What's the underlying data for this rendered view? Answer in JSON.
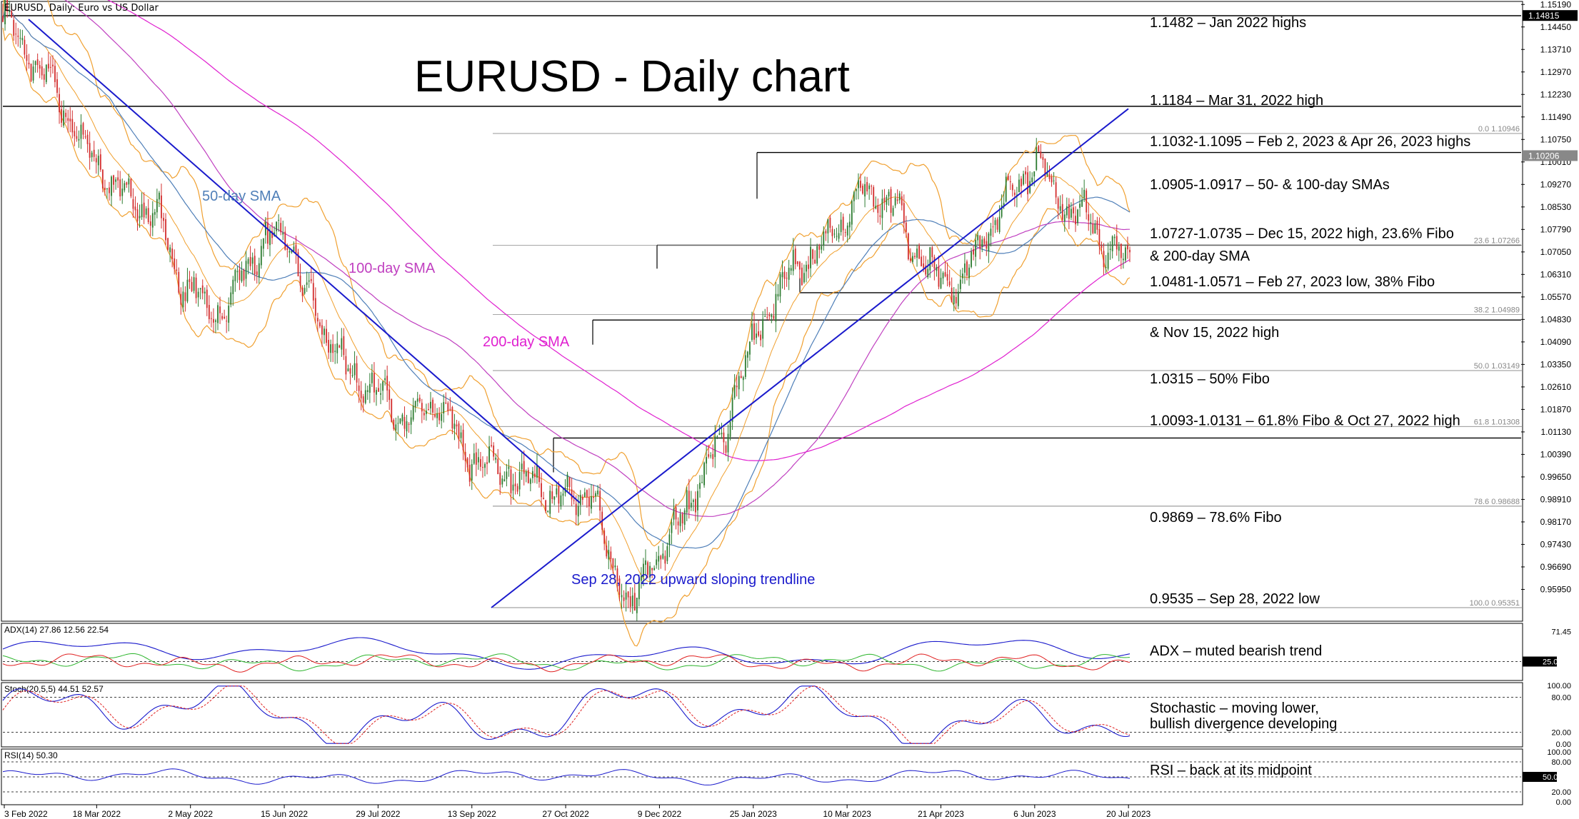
{
  "chart_data": {
    "type": "line",
    "title": "EURUSD - Daily chart",
    "header": "EURUSD, Daily:  Euro vs US Dollar",
    "instrument": "EURUSD",
    "timeframe": "Daily",
    "colors": {
      "price_up": "#2e7d32",
      "price_down": "#d32f2f",
      "sma50": "#4f7fb8",
      "sma100": "#c040c0",
      "sma200": "#e020d0",
      "bollinger": "#f0a030",
      "trendline": "#1a1acc",
      "level_line": "#000000",
      "fib_line": "#888888",
      "adx": "#1a1acc",
      "plus_di": "#2db52d",
      "minus_di": "#e02020",
      "stoch_main": "#1a1acc",
      "stoch_signal": "#e02020",
      "rsi": "#1a1acc"
    },
    "x_labels": [
      "3 Feb 2022",
      "18 Mar 2022",
      "2 May 2022",
      "15 Jun 2022",
      "29 Jul 2022",
      "13 Sep 2022",
      "27 Oct 2022",
      "9 Dec 2022",
      "25 Jan 2023",
      "10 Mar 2023",
      "21 Apr 2023",
      "6 Jun 2023",
      "20 Jul 2023"
    ],
    "y_ticks": [
      "1.15190",
      "1.14450",
      "1.13710",
      "1.12970",
      "1.12230",
      "1.11490",
      "1.10750",
      "1.10010",
      "1.09270",
      "1.08530",
      "1.07790",
      "1.07050",
      "1.06310",
      "1.05570",
      "1.04830",
      "1.04090",
      "1.03350",
      "1.02610",
      "1.01870",
      "1.01130",
      "1.00390",
      "0.99650",
      "0.98910",
      "0.98170",
      "0.97430",
      "0.96690",
      "0.95950"
    ],
    "ylim": [
      0.9535,
      1.1519
    ],
    "y_tick_values": [
      1.1519,
      1.1445,
      1.1371,
      1.1297,
      1.1223,
      1.1149,
      1.1075,
      1.1001,
      1.0927,
      1.0853,
      1.0779,
      1.0705,
      1.0631,
      1.0557,
      1.0483,
      1.0409,
      1.0335,
      1.0261,
      1.0187,
      1.0113,
      1.0039,
      0.9965,
      0.9891,
      0.9817,
      0.9743,
      0.9669,
      0.9595
    ],
    "price_badges": [
      {
        "text": "1.14815",
        "value": 1.14815
      },
      {
        "text": "1.10206",
        "value": 1.10206
      }
    ],
    "series": [
      {
        "name": "Close",
        "x": [
          0,
          10,
          20,
          30,
          40,
          55,
          70,
          85,
          100,
          115,
          130,
          140,
          150,
          160,
          170,
          185,
          200,
          215,
          230,
          245,
          260,
          270,
          280,
          290,
          300,
          310,
          315,
          320,
          330,
          340,
          348,
          355,
          365,
          375,
          385,
          395,
          410,
          420,
          430,
          440,
          455,
          465,
          475,
          485,
          492,
          500,
          510
        ],
        "y": [
          1.1482,
          1.1367,
          1.128,
          1.115,
          1.102,
          1.09,
          1.082,
          1.058,
          1.05,
          1.069,
          1.078,
          1.056,
          1.042,
          1.03,
          1.025,
          1.016,
          1.02,
          1.004,
          0.998,
          0.995,
          0.988,
          0.992,
          0.968,
          0.954,
          0.97,
          0.978,
          0.988,
          0.995,
          1.007,
          1.03,
          1.045,
          1.055,
          1.065,
          1.07,
          1.08,
          1.09,
          1.086,
          1.072,
          1.062,
          1.06,
          1.078,
          1.09,
          1.1,
          1.09,
          1.083,
          1.082,
          1.07
        ]
      }
    ],
    "sma_labels": [
      "50-day SMA",
      "100-day SMA",
      "200-day SMA"
    ],
    "trendline_label": "Sep 28, 2022 upward sloping trendline",
    "levels": [
      {
        "label": "1.1482 – Jan 2022 highs",
        "value": 1.1482,
        "style": "solid"
      },
      {
        "label": "1.1184 – Mar 31, 2022 high",
        "value": 1.1184,
        "style": "solid"
      },
      {
        "label": "1.1032-1.1095 – Feb 2, 2023 & Apr 26, 2023 highs",
        "value": 1.1032,
        "style": "solid"
      },
      {
        "label": "1.0905-1.0917 – 50- & 100-day SMAs",
        "value": 1.0911,
        "style": "none"
      },
      {
        "label": "1.0727-1.0735 – Dec 15, 2022 high, 23.6% Fibo",
        "value": 1.0727,
        "style": "solid"
      },
      {
        "label": "& 200-day SMA",
        "value": 1.0705,
        "style": "none"
      },
      {
        "label": "1.0481-1.0571 – Feb 27, 2023 low, 38% Fibo",
        "value": 1.0571,
        "style": "solid"
      },
      {
        "label": "& Nov 15, 2022 high",
        "value": 1.0481,
        "style": "solid"
      },
      {
        "label": "1.0315 – 50% Fibo",
        "value": 1.0315,
        "style": "fib"
      },
      {
        "label": "1.0093-1.0131 – 61.8% Fibo & Oct 27, 2022 high",
        "value": 1.0093,
        "style": "solid"
      },
      {
        "label": "0.9869 – 78.6% Fibo",
        "value": 0.9869,
        "style": "fib"
      },
      {
        "label": "0.9535 – Sep 28, 2022 low",
        "value": 0.9535,
        "style": "fib"
      }
    ],
    "fib_labels": [
      {
        "text": "0.0 1.10946",
        "value": 1.10946
      },
      {
        "text": "23.6 1.07266",
        "value": 1.07266
      },
      {
        "text": "38.2 1.04989",
        "value": 1.04989
      },
      {
        "text": "50.0 1.03149",
        "value": 1.03149
      },
      {
        "text": "61.8 1.01308",
        "value": 1.01308
      },
      {
        "text": "78.6 0.98688",
        "value": 0.98688
      },
      {
        "text": "100.0 0.95351",
        "value": 0.95351
      }
    ],
    "indicators": [
      {
        "name": "ADX",
        "header": "ADX(14) 27.86 12.56 22.54",
        "annotation": "ADX – muted bearish trend",
        "ylim": [
          0,
          80
        ],
        "ticks": [
          "71.45"
        ],
        "badge": "25.00",
        "reference_levels": [
          25
        ]
      },
      {
        "name": "Stochastic",
        "header": "Stoch(20,5,5) 44.51 52.57",
        "annotation_lines": [
          "Stochastic – moving lower,",
          "bullish divergence developing"
        ],
        "ylim": [
          0,
          100
        ],
        "ticks": [
          "100.00",
          "80.00",
          "20.00",
          "0.00"
        ],
        "reference_levels": [
          80,
          20
        ]
      },
      {
        "name": "RSI",
        "header": "RSI(14) 50.30",
        "annotation": "RSI – back at its midpoint",
        "ylim": [
          0,
          100
        ],
        "ticks": [
          "100.00",
          "80.00",
          "20.00",
          "0.00"
        ],
        "badge": "50.00",
        "reference_levels": [
          80,
          50,
          20
        ]
      }
    ],
    "grid": false,
    "legend": "none"
  }
}
